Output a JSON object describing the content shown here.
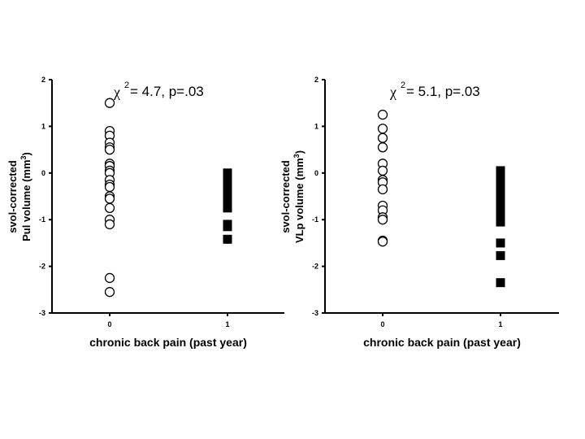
{
  "chart_data": [
    {
      "type": "scatter",
      "name": "pul",
      "xlabel": "chronic back pain (past year)",
      "ylabel_line1": "svol-corrected",
      "ylabel_line2_prefix": "Pul volume (mm",
      "ylabel_sup": "3",
      "ylabel_line2_suffix": ")",
      "annotation_symbol": "χ",
      "annotation_sup": "2",
      "annotation_text": " = 4.7, p=.03",
      "ylim": [
        -3,
        2
      ],
      "yticks": [
        "-3",
        "-2",
        "-1",
        "0",
        "1",
        "2"
      ],
      "xticks": [
        "0",
        "1"
      ],
      "series": [
        {
          "name": "0",
          "marker": "open-circle",
          "x": 0,
          "values": [
            1.5,
            0.9,
            0.8,
            0.65,
            0.55,
            0.5,
            0.2,
            0.15,
            0.05,
            0.0,
            -0.15,
            -0.25,
            -0.3,
            -0.5,
            -0.55,
            -0.75,
            -1.0,
            -1.1,
            -2.25,
            -2.55
          ]
        },
        {
          "name": "1",
          "marker": "filled-square",
          "x": 1,
          "values": [
            0.0,
            -0.05,
            -0.1,
            -0.15,
            -0.2,
            -0.25,
            -0.3,
            -0.35,
            -0.4,
            -0.45,
            -0.5,
            -0.55,
            -0.6,
            -0.65,
            -0.75,
            -1.1,
            -1.15,
            -1.42
          ]
        }
      ]
    },
    {
      "type": "scatter",
      "name": "vlp",
      "xlabel": "chronic back pain (past year)",
      "ylabel_line1": "svol-corrected",
      "ylabel_line2_prefix": "VLp volume (mm",
      "ylabel_sup": "3",
      "ylabel_line2_suffix": ")",
      "annotation_symbol": "χ",
      "annotation_sup": "2",
      "annotation_text": " = 5.1, p=.03",
      "ylim": [
        -3,
        2
      ],
      "yticks": [
        "-3",
        "-2",
        "-1",
        "0",
        "1",
        "2"
      ],
      "xticks": [
        "0",
        "1"
      ],
      "series": [
        {
          "name": "0",
          "marker": "open-circle",
          "x": 0,
          "values": [
            1.25,
            0.95,
            0.75,
            0.55,
            0.2,
            0.05,
            -0.15,
            -0.2,
            -0.35,
            -0.7,
            -0.8,
            -0.95,
            -1.0,
            -1.45,
            -1.47
          ]
        },
        {
          "name": "1",
          "marker": "filled-square",
          "x": 1,
          "values": [
            0.05,
            0.0,
            -0.05,
            -0.1,
            -0.15,
            -0.2,
            -0.25,
            -0.3,
            -0.35,
            -0.4,
            -0.45,
            -0.5,
            -0.55,
            -0.6,
            -0.65,
            -0.7,
            -0.75,
            -0.8,
            -0.85,
            -0.95,
            -1.05,
            -1.5,
            -1.77,
            -2.35
          ]
        }
      ]
    }
  ]
}
